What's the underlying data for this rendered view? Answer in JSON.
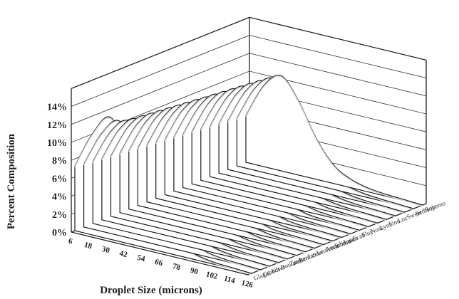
{
  "chart_data": {
    "type": "3d-line",
    "xlabel": "Droplet Size (microns)",
    "ylabel": "Percent Composition",
    "x": [
      6,
      18,
      30,
      42,
      54,
      66,
      78,
      90,
      102,
      114,
      126
    ],
    "y_ticks": [
      "0%",
      "2%",
      "4%",
      "6%",
      "8%",
      "10%",
      "12%",
      "14%"
    ],
    "ylim": [
      0,
      16
    ],
    "depth_labels": [
      "Ropemo",
      "Setback",
      "Sweet",
      "Loc",
      "Fino",
      "Lynn",
      "Noss",
      "Fluy",
      "Ecan",
      "Lustn",
      "Sdimate",
      "Amazonm",
      "Lenfetcit",
      "Lunas",
      "Rennm",
      "Tarriso",
      "Bouland",
      "Kiwa",
      "Grandt",
      "Glagal"
    ],
    "series": [
      {
        "values": [
          5.2,
          9.0,
          10.6,
          8.2,
          4.5,
          2.0,
          0.9,
          0.4,
          0.2,
          0.1,
          0.0
        ]
      },
      {
        "values": [
          5.3,
          9.1,
          10.7,
          8.3,
          4.6,
          2.0,
          0.9,
          0.4,
          0.2,
          0.1,
          0.0
        ]
      },
      {
        "values": [
          5.4,
          9.2,
          10.8,
          8.4,
          4.6,
          2.1,
          0.9,
          0.4,
          0.2,
          0.1,
          0.0
        ]
      },
      {
        "values": [
          5.5,
          9.3,
          10.9,
          8.5,
          4.7,
          2.1,
          0.9,
          0.4,
          0.2,
          0.1,
          0.0
        ]
      },
      {
        "values": [
          5.6,
          9.4,
          11.0,
          8.6,
          4.7,
          2.1,
          0.9,
          0.4,
          0.2,
          0.1,
          0.0
        ]
      },
      {
        "values": [
          5.7,
          9.5,
          11.1,
          8.7,
          4.8,
          2.2,
          1.0,
          0.4,
          0.2,
          0.1,
          0.0
        ]
      },
      {
        "values": [
          5.8,
          9.6,
          11.2,
          8.8,
          4.8,
          2.2,
          1.0,
          0.4,
          0.2,
          0.1,
          0.0
        ]
      },
      {
        "values": [
          5.9,
          9.7,
          11.3,
          8.9,
          4.9,
          2.2,
          1.0,
          0.4,
          0.2,
          0.1,
          0.0
        ]
      },
      {
        "values": [
          6.0,
          9.8,
          11.4,
          9.0,
          4.9,
          2.3,
          1.0,
          0.4,
          0.2,
          0.1,
          0.0
        ]
      },
      {
        "values": [
          6.1,
          9.9,
          11.5,
          9.1,
          5.0,
          2.3,
          1.0,
          0.4,
          0.2,
          0.1,
          0.0
        ]
      },
      {
        "values": [
          6.2,
          10.0,
          11.6,
          9.2,
          5.0,
          2.3,
          1.0,
          0.4,
          0.2,
          0.1,
          0.0
        ]
      },
      {
        "values": [
          6.3,
          10.1,
          11.7,
          9.3,
          5.1,
          2.4,
          1.1,
          0.4,
          0.2,
          0.1,
          0.0
        ]
      },
      {
        "values": [
          6.4,
          10.2,
          11.8,
          9.4,
          5.1,
          2.4,
          1.1,
          0.5,
          0.2,
          0.1,
          0.0
        ]
      },
      {
        "values": [
          6.5,
          10.3,
          11.9,
          9.5,
          5.2,
          2.4,
          1.1,
          0.5,
          0.2,
          0.1,
          0.0
        ]
      },
      {
        "values": [
          6.6,
          10.4,
          12.0,
          9.6,
          5.2,
          2.5,
          1.1,
          0.5,
          0.2,
          0.1,
          0.0
        ]
      },
      {
        "values": [
          6.7,
          10.5,
          12.1,
          9.7,
          5.3,
          2.5,
          1.1,
          0.5,
          0.2,
          0.1,
          0.0
        ]
      },
      {
        "values": [
          6.8,
          10.6,
          12.2,
          9.8,
          5.3,
          2.5,
          1.1,
          0.5,
          0.2,
          0.1,
          0.0
        ]
      },
      {
        "values": [
          6.9,
          10.7,
          12.4,
          9.9,
          5.4,
          2.6,
          1.2,
          0.5,
          0.2,
          0.1,
          0.0
        ]
      },
      {
        "values": [
          7.0,
          10.9,
          12.8,
          10.1,
          5.4,
          2.6,
          1.2,
          0.5,
          0.2,
          0.1,
          0.0
        ]
      },
      {
        "values": [
          7.2,
          11.3,
          13.6,
          10.4,
          5.5,
          2.6,
          1.2,
          0.5,
          0.2,
          0.1,
          0.0
        ]
      }
    ],
    "grid": true,
    "legend": "none"
  }
}
